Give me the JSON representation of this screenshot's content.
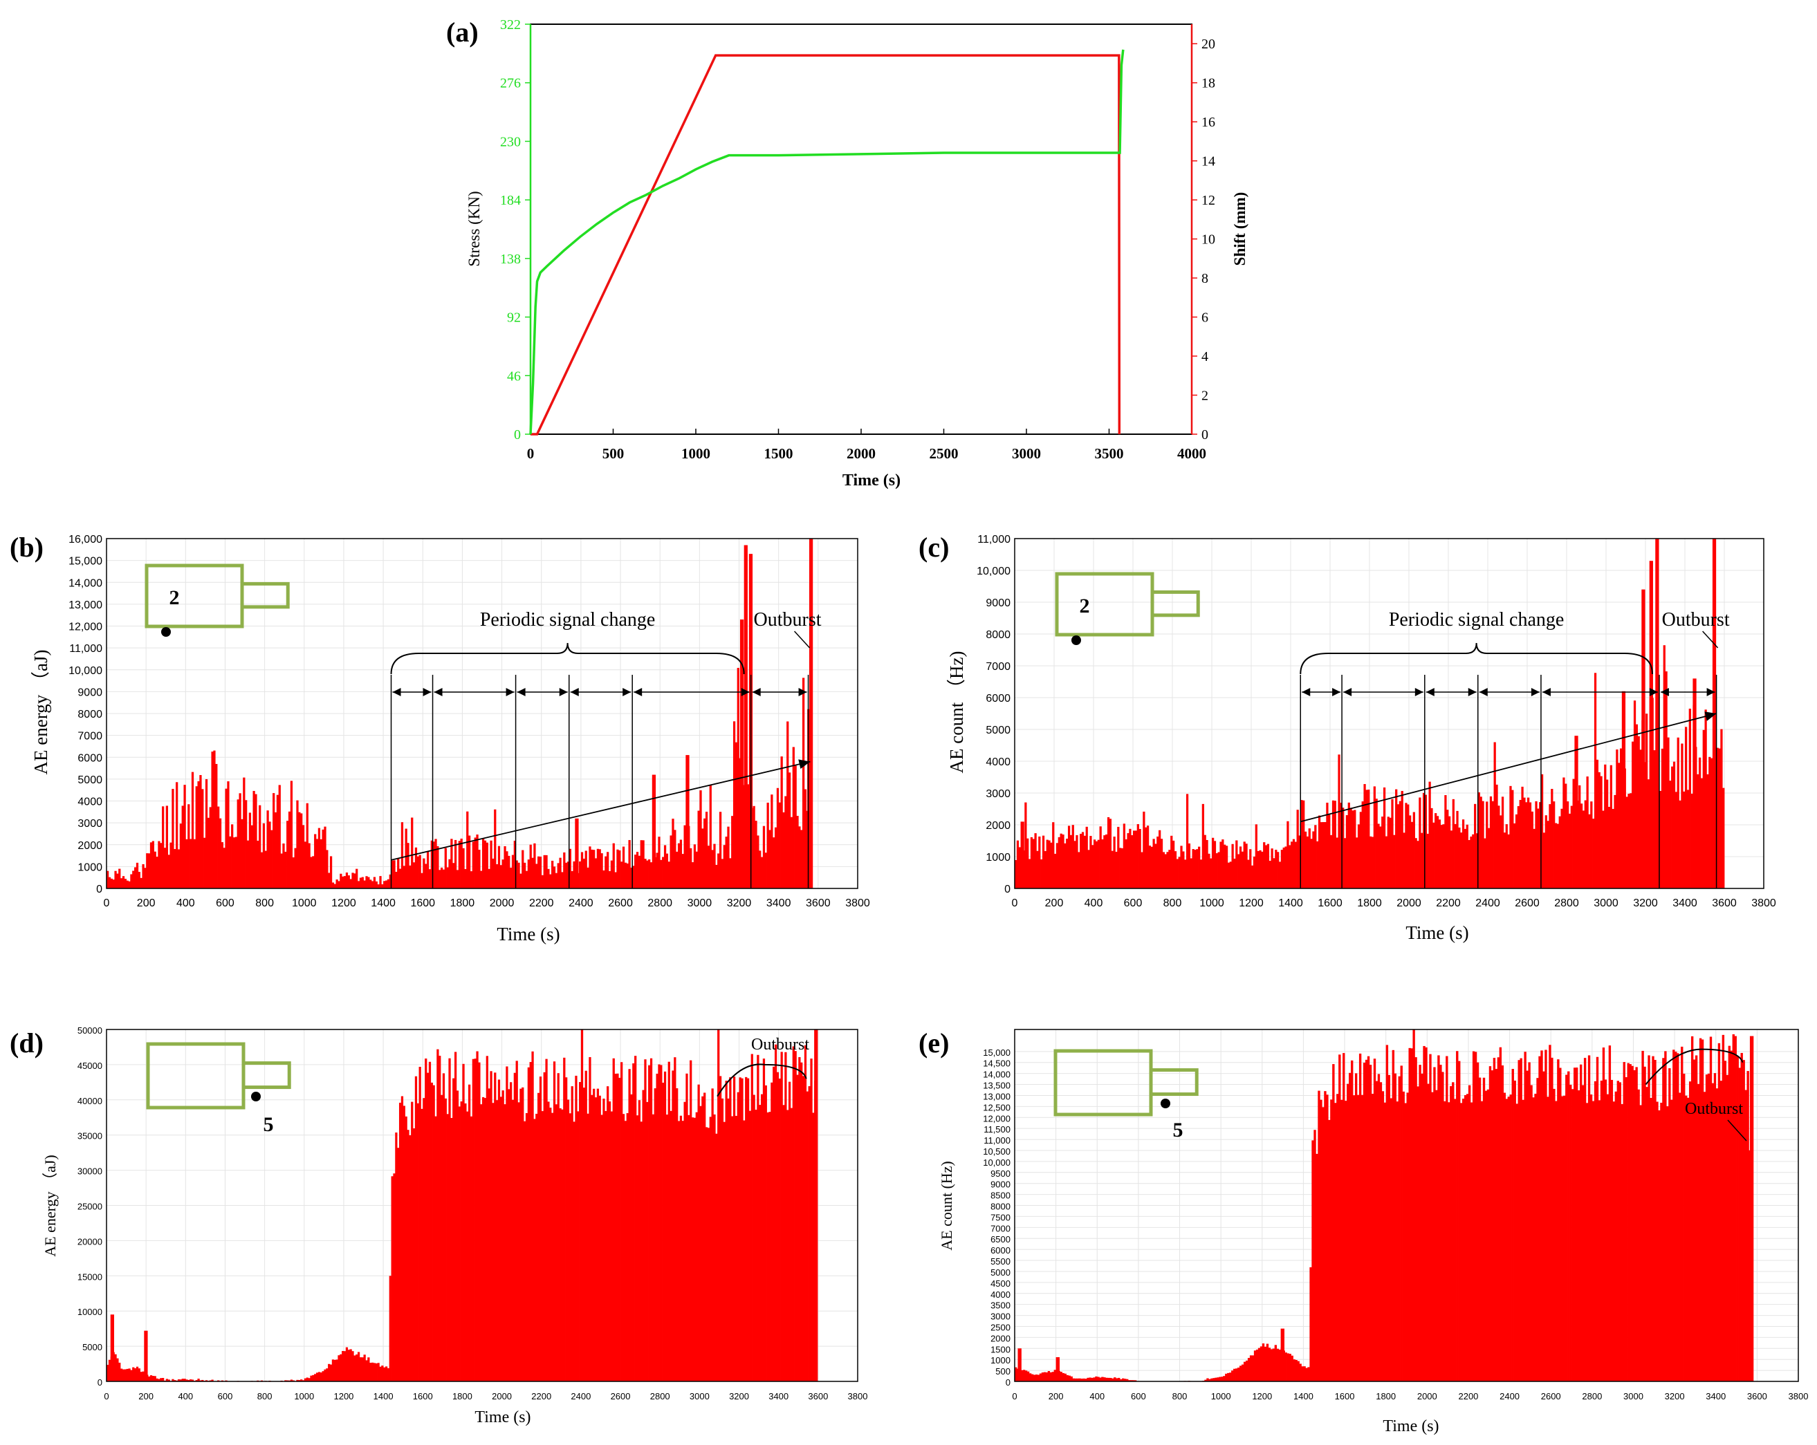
{
  "colors": {
    "stress": "#22dd22",
    "shift": "#ee1111",
    "bar": "#ff0000",
    "grid": "#e4e4e4",
    "box": "#8fb04a"
  },
  "chart_data": [
    {
      "panel": "(a)",
      "type": "line",
      "xlabel": "Time (s)",
      "ylabel_left": "Stress (KN)",
      "ylabel_right": "Shift (mm)",
      "xlim": [
        0,
        4000
      ],
      "ylim_left": [
        0,
        322
      ],
      "ylim_right": [
        0,
        21
      ],
      "xticks": [
        "0",
        "500",
        "1000",
        "1500",
        "2000",
        "2500",
        "3000",
        "3500",
        "4000"
      ],
      "yticks_left": [
        "0",
        "46",
        "92",
        "138",
        "184",
        "230",
        "276",
        "322"
      ],
      "yticks_right": [
        "0",
        "2",
        "4",
        "6",
        "8",
        "10",
        "12",
        "14",
        "16",
        "18",
        "20"
      ],
      "series": [
        {
          "name": "Stress",
          "axis": "left",
          "x": [
            0,
            15,
            30,
            40,
            60,
            100,
            200,
            300,
            400,
            500,
            600,
            700,
            800,
            900,
            1000,
            1100,
            1200,
            1500,
            2000,
            2500,
            3000,
            3500,
            3565,
            3575,
            3585
          ],
          "y": [
            0,
            40,
            100,
            120,
            127,
            132,
            144,
            155,
            165,
            174,
            182,
            188,
            195,
            201,
            208,
            214,
            219,
            219,
            220,
            221,
            221,
            221,
            221,
            290,
            302
          ]
        },
        {
          "name": "Shift",
          "axis": "right",
          "x": [
            0,
            40,
            1120,
            3550,
            3560,
            3562
          ],
          "y": [
            0,
            0,
            19.4,
            19.4,
            19.4,
            0
          ]
        }
      ]
    },
    {
      "panel": "(b)",
      "type": "bar",
      "xlabel": "Time (s)",
      "ylabel": "AE energy （aJ)",
      "xlim": [
        0,
        3800
      ],
      "ylim": [
        0,
        16000
      ],
      "xticks": [
        "0",
        "200",
        "400",
        "600",
        "800",
        "1000",
        "1200",
        "1400",
        "1600",
        "1800",
        "2000",
        "2200",
        "2400",
        "2600",
        "2800",
        "3000",
        "3200",
        "3400",
        "3600",
        "3800"
      ],
      "yticks": [
        "0",
        "1000",
        "2000",
        "3000",
        "4000",
        "5000",
        "6000",
        "7000",
        "8000",
        "9000",
        "10,000",
        "11,000",
        "12,000",
        "13,000",
        "14,000",
        "15,000",
        "16,000"
      ],
      "profile": {
        "x": [
          0,
          40,
          100,
          180,
          250,
          300,
          400,
          500,
          600,
          700,
          800,
          900,
          1000,
          1100,
          1150,
          1200,
          1300,
          1420,
          1440,
          1600,
          1800,
          2000,
          2200,
          2400,
          2600,
          2800,
          3000,
          3150,
          3200,
          3260,
          3300,
          3400,
          3500,
          3560
        ],
        "y": [
          700,
          600,
          600,
          900,
          1800,
          3000,
          4000,
          4300,
          4000,
          3500,
          3000,
          2900,
          2700,
          2300,
          400,
          500,
          400,
          400,
          1300,
          1500,
          1700,
          1600,
          1300,
          1200,
          1500,
          1700,
          2000,
          2500,
          8000,
          3000,
          2600,
          3000,
          4000,
          5000
        ]
      },
      "spikes": [
        {
          "x": 3205,
          "y": 12300
        },
        {
          "x": 3225,
          "y": 15700
        },
        {
          "x": 3250,
          "y": 15300
        },
        {
          "x": 3555,
          "y": 16000
        },
        {
          "x": 3545,
          "y": 8200
        },
        {
          "x": 2930,
          "y": 6100
        },
        {
          "x": 2760,
          "y": 5200
        },
        {
          "x": 1080,
          "y": 2200
        },
        {
          "x": 2370,
          "y": 3200
        }
      ],
      "end_x": 3570,
      "annotations": {
        "periodic": "Periodic signal change",
        "outburst": "Outburst",
        "sensor": "2"
      },
      "phase_boundaries": [
        1440,
        1650,
        2070,
        2340,
        2660,
        3260,
        3550
      ],
      "trend": {
        "x": [
          1440,
          3560
        ],
        "y": [
          1300,
          5800
        ]
      }
    },
    {
      "panel": "(c)",
      "type": "bar",
      "xlabel": "Time (s)",
      "ylabel": "AE count （Hz)",
      "xlim": [
        0,
        3800
      ],
      "ylim": [
        0,
        11000
      ],
      "xticks": [
        "0",
        "200",
        "400",
        "600",
        "800",
        "1000",
        "1200",
        "1400",
        "1600",
        "1800",
        "2000",
        "2200",
        "2400",
        "2600",
        "2800",
        "3000",
        "3200",
        "3400",
        "3600",
        "3800"
      ],
      "yticks": [
        "0",
        "1000",
        "2000",
        "3000",
        "4000",
        "5000",
        "6000",
        "7000",
        "8000",
        "9000",
        "10,000",
        "11,000"
      ],
      "profile": {
        "x": [
          0,
          100,
          200,
          300,
          400,
          600,
          800,
          1000,
          1200,
          1400,
          1440,
          1600,
          1800,
          2000,
          2200,
          2400,
          2600,
          2800,
          3000,
          3100,
          3200,
          3280,
          3300,
          3400,
          3500,
          3600
        ],
        "y": [
          1200,
          1300,
          1400,
          1600,
          1700,
          1600,
          1400,
          1300,
          1100,
          1100,
          2100,
          2300,
          2500,
          2300,
          2200,
          2400,
          2600,
          2800,
          3300,
          3600,
          5500,
          3200,
          3600,
          4300,
          5000,
          2700
        ]
      },
      "spikes": [
        {
          "x": 3180,
          "y": 9400
        },
        {
          "x": 3220,
          "y": 10300
        },
        {
          "x": 3250,
          "y": 11000
        },
        {
          "x": 3540,
          "y": 11000
        },
        {
          "x": 3440,
          "y": 6600
        },
        {
          "x": 3080,
          "y": 6200
        },
        {
          "x": 2840,
          "y": 4800
        },
        {
          "x": 30,
          "y": 2100
        }
      ],
      "end_x": 3600,
      "annotations": {
        "periodic": "Periodic signal change",
        "outburst": "Outburst",
        "sensor": "2"
      },
      "phase_boundaries": [
        1450,
        1660,
        2080,
        2350,
        2670,
        3270,
        3560
      ],
      "trend": {
        "x": [
          1450,
          3560
        ],
        "y": [
          2100,
          5500
        ]
      }
    },
    {
      "panel": "(d)",
      "type": "bar",
      "xlabel": "Time (s)",
      "ylabel": "AE energy （aJ)",
      "xlim": [
        0,
        3800
      ],
      "ylim": [
        0,
        50000
      ],
      "xticks": [
        "0",
        "200",
        "400",
        "600",
        "800",
        "1000",
        "1200",
        "1400",
        "1600",
        "1800",
        "2000",
        "2200",
        "2400",
        "2600",
        "2800",
        "3000",
        "3200",
        "3400",
        "3600",
        "3800"
      ],
      "yticks": [
        "0",
        "5000",
        "10000",
        "15000",
        "20000",
        "25000",
        "30000",
        "35000",
        "40000",
        "45000",
        "50000"
      ],
      "profile": {
        "x": [
          0,
          40,
          80,
          150,
          200,
          260,
          300,
          400,
          500,
          600,
          900,
          1000,
          1100,
          1200,
          1300,
          1400,
          1430,
          1440,
          1480,
          1550,
          1650,
          1800,
          2000,
          2200,
          2400,
          2600,
          2800,
          3000,
          3100,
          3200,
          3300,
          3400,
          3500,
          3580
        ],
        "y": [
          2000,
          4000,
          1500,
          2000,
          1000,
          500,
          200,
          300,
          200,
          0,
          0,
          300,
          1500,
          4500,
          3500,
          2000,
          2000,
          30000,
          38000,
          40000,
          42500,
          42000,
          42000,
          42000,
          41500,
          41500,
          42000,
          41000,
          39500,
          40500,
          42500,
          43500,
          43500,
          43000
        ]
      },
      "spikes": [
        {
          "x": 20,
          "y": 9500
        },
        {
          "x": 190,
          "y": 7200
        },
        {
          "x": 3580,
          "y": 50000
        }
      ],
      "end_x": 3590,
      "annotations": {
        "outburst": "Outburst",
        "sensor": "5"
      }
    },
    {
      "panel": "(e)",
      "type": "bar",
      "xlabel": "Time (s)",
      "ylabel": "AE count (Hz)",
      "xlim": [
        0,
        3800
      ],
      "ylim": [
        0,
        16000
      ],
      "xticks": [
        "0",
        "200",
        "400",
        "600",
        "800",
        "1000",
        "1200",
        "1400",
        "1600",
        "1800",
        "2000",
        "2200",
        "2400",
        "2600",
        "2800",
        "3000",
        "3200",
        "3400",
        "3600",
        "3800"
      ],
      "yticks": [
        "0",
        "500",
        "1000",
        "1500",
        "2000",
        "2500",
        "3000",
        "3500",
        "4000",
        "4500",
        "5000",
        "5500",
        "6000",
        "6500",
        "7000",
        "7500",
        "8000",
        "8500",
        "9000",
        "9500",
        "10,000",
        "10,500",
        "11,000",
        "11,500",
        "12,000",
        "12,500",
        "13,000",
        "13,500",
        "14,000",
        "14,500",
        "15,000"
      ],
      "profile": {
        "x": [
          0,
          40,
          100,
          200,
          300,
          400,
          500,
          600,
          900,
          1000,
          1100,
          1200,
          1300,
          1400,
          1430,
          1440,
          1480,
          1550,
          1650,
          1800,
          2000,
          2200,
          2400,
          2600,
          2800,
          3000,
          3100,
          3200,
          3300,
          3400,
          3500,
          3560,
          3570
        ],
        "y": [
          700,
          500,
          300,
          500,
          100,
          200,
          150,
          0,
          0,
          200,
          700,
          1800,
          1400,
          700,
          600,
          9800,
          12500,
          13600,
          13800,
          14000,
          14000,
          14000,
          14000,
          14000,
          14000,
          13800,
          13600,
          13800,
          14400,
          14500,
          14500,
          14000,
          8800
        ]
      },
      "spikes": [
        {
          "x": 15,
          "y": 1500
        },
        {
          "x": 200,
          "y": 1100
        },
        {
          "x": 1290,
          "y": 2400
        },
        {
          "x": 3565,
          "y": 15700
        }
      ],
      "end_x": 3580,
      "annotations": {
        "outburst": "Outburst",
        "sensor": "5"
      }
    }
  ]
}
